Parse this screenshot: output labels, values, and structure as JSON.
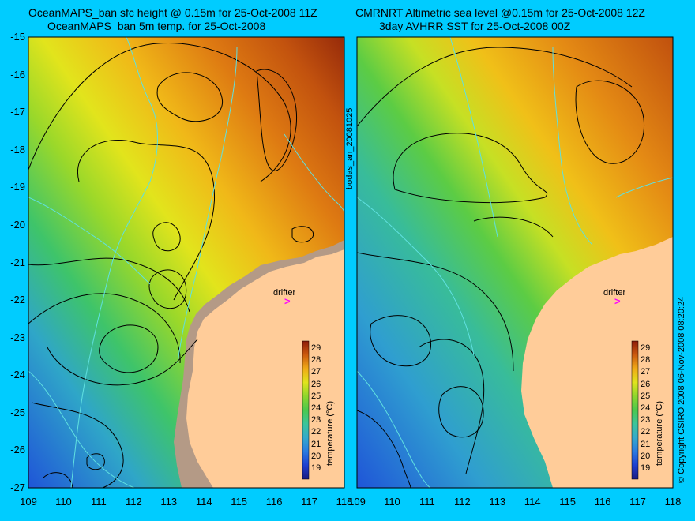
{
  "left_panel": {
    "title_line1": "OceanMAPS_ban sfc height @ 0.15m for 25-Oct-2008 11Z",
    "title_line2": "OceanMAPS_ban 5m temp. for 25-Oct-2008"
  },
  "right_panel": {
    "title_line1": "CMRNRT Altimetric sea level  @0.15m  for 25-Oct-2008 12Z",
    "title_line2": "3day AVHRR SST for 25-Oct-2008 00Z"
  },
  "latitude_ticks": [
    "-15",
    "-16",
    "-17",
    "-18",
    "-19",
    "-20",
    "-21",
    "-22",
    "-23",
    "-24",
    "-25",
    "-26",
    "-27"
  ],
  "longitude_ticks": [
    "109",
    "110",
    "111",
    "112",
    "113",
    "114",
    "115",
    "116",
    "117",
    "118"
  ],
  "colorbar": {
    "label": "temperature (°C)",
    "ticks": [
      "29",
      "28",
      "27",
      "26",
      "25",
      "24",
      "23",
      "22",
      "21",
      "20",
      "19"
    ],
    "colors": [
      "#1a1a80",
      "#1f3fd0",
      "#2a7ae0",
      "#33aacc",
      "#3cc59a",
      "#4cc84c",
      "#8ed62c",
      "#d6e61e",
      "#f2c418",
      "#ef9a14",
      "#d96d10",
      "#b8400d",
      "#8c1a08"
    ]
  },
  "drifter_label": "drifter",
  "drifter_symbol": ">",
  "side_text": "bodas_an_20081025",
  "copyright": "© Copyright CSIRO 2008   06-Nov-2008 08:20:24",
  "colors": {
    "background": "#00ccff",
    "land": "#ffcc99",
    "shelf_grey": "#b49a86",
    "contour": "#000000",
    "isobath": "#60e0e0",
    "drifter": "#ff00ff"
  }
}
